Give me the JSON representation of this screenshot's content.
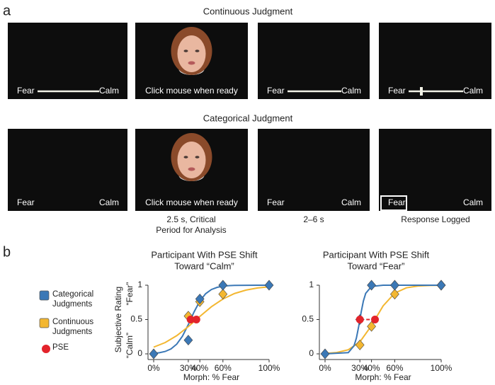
{
  "panel_a": {
    "label": "a",
    "rows": [
      {
        "title": "Continuous Judgment",
        "screens": [
          {
            "left": "Fear",
            "right": "Calm"
          },
          {
            "center": "Click mouse when ready"
          },
          {
            "left": "Fear",
            "right": "Calm"
          },
          {
            "left": "Fear",
            "right": "Calm"
          }
        ]
      },
      {
        "title": "Categorical Judgment",
        "screens": [
          {
            "left": "Fear",
            "right": "Calm"
          },
          {
            "center": "Click mouse when ready"
          },
          {
            "left": "Fear",
            "right": "Calm"
          },
          {
            "left": "Fear",
            "right": "Calm"
          }
        ]
      }
    ],
    "captions": [
      [
        "2.5 s, Critical",
        "Period for Analysis"
      ],
      [
        "2–6 s"
      ],
      [
        "Response Logged"
      ]
    ]
  },
  "panel_b_label": "b",
  "chart_data": [
    {
      "type": "line",
      "title": [
        "Participant With PSE Shift",
        "Toward “Calm”"
      ],
      "x_label": "Morph: % Fear",
      "y_label": "Subjective Rating",
      "y_top_label": "“Fear”",
      "y_bottom_label": "“Calm”",
      "xlim": [
        0,
        100
      ],
      "ylim": [
        0,
        1
      ],
      "xticks": [
        {
          "value": 0,
          "label": "0%"
        },
        {
          "value": 30,
          "label": "30%"
        },
        {
          "value": 40,
          "label": "40%"
        },
        {
          "value": 60,
          "label": "60%"
        },
        {
          "value": 100,
          "label": "100%"
        }
      ],
      "yticks": [
        0,
        0.5,
        1
      ],
      "series": [
        {
          "name": "Categorical Judgments",
          "color": "#3b78b6",
          "marker": "diamond",
          "x": [
            0,
            30,
            40,
            60,
            100
          ],
          "values": [
            0,
            0.2,
            0.8,
            1,
            1
          ]
        },
        {
          "name": "Continuous Judgments",
          "color": "#f3b731",
          "marker": "diamond",
          "x": [
            30,
            40,
            60
          ],
          "values": [
            0.55,
            0.76,
            0.87
          ]
        },
        {
          "name": "PSE",
          "color": "#e3232b",
          "marker": "circle",
          "x": [
            32,
            37
          ],
          "values": [
            0.5,
            0.5
          ]
        }
      ],
      "curves": [
        {
          "color": "#3b78b6",
          "x": [
            0,
            5,
            10,
            15,
            20,
            25,
            30,
            35,
            40,
            45,
            50,
            55,
            60,
            65,
            70,
            80,
            90,
            100
          ],
          "values": [
            0.008,
            0.017,
            0.035,
            0.072,
            0.142,
            0.259,
            0.426,
            0.611,
            0.769,
            0.876,
            0.937,
            0.969,
            0.985,
            0.993,
            0.997,
            0.999,
            1,
            1
          ]
        },
        {
          "color": "#f3b731",
          "x": [
            0,
            10,
            20,
            30,
            37,
            40,
            50,
            60,
            70,
            80,
            90,
            100
          ],
          "values": [
            0.098,
            0.165,
            0.265,
            0.397,
            0.5,
            0.545,
            0.686,
            0.799,
            0.879,
            0.929,
            0.96,
            0.977
          ]
        }
      ]
    },
    {
      "type": "line",
      "title": [
        "Participant With PSE Shift",
        "Toward “Fear”"
      ],
      "x_label": "Morph: % Fear",
      "xlim": [
        0,
        100
      ],
      "ylim": [
        0,
        1
      ],
      "xticks": [
        {
          "value": 0,
          "label": "0%"
        },
        {
          "value": 30,
          "label": "30%"
        },
        {
          "value": 40,
          "label": "40%"
        },
        {
          "value": 60,
          "label": "60%"
        },
        {
          "value": 100,
          "label": "100%"
        }
      ],
      "yticks": [
        0,
        0.5,
        1
      ],
      "series": [
        {
          "name": "Categorical Judgments",
          "color": "#3b78b6",
          "marker": "diamond",
          "x": [
            0,
            30,
            40,
            60,
            100
          ],
          "values": [
            0,
            0.5,
            1,
            1,
            1
          ]
        },
        {
          "name": "Continuous Judgments",
          "color": "#f3b731",
          "marker": "diamond",
          "x": [
            30,
            40,
            60,
            100
          ],
          "values": [
            0.13,
            0.4,
            0.87,
            1
          ]
        },
        {
          "name": "PSE",
          "color": "#e3232b",
          "marker": "circle",
          "dashed": true,
          "x": [
            30,
            43
          ],
          "values": [
            0.5,
            0.5
          ]
        }
      ],
      "curves": [
        {
          "color": "#f3b731",
          "x": [
            0,
            10,
            20,
            30,
            40,
            43,
            50,
            60,
            70,
            80,
            90,
            100
          ],
          "values": [
            0.006,
            0.019,
            0.06,
            0.174,
            0.411,
            0.5,
            0.699,
            0.885,
            0.962,
            0.988,
            0.996,
            0.999
          ]
        },
        {
          "color": "#3b78b6",
          "x": [
            0,
            20,
            25,
            27,
            29,
            30,
            31,
            33,
            35,
            40,
            50,
            100
          ],
          "values": [
            0,
            0.018,
            0.119,
            0.231,
            0.401,
            0.5,
            0.599,
            0.769,
            0.881,
            0.982,
            1,
            1
          ]
        }
      ]
    }
  ]
}
